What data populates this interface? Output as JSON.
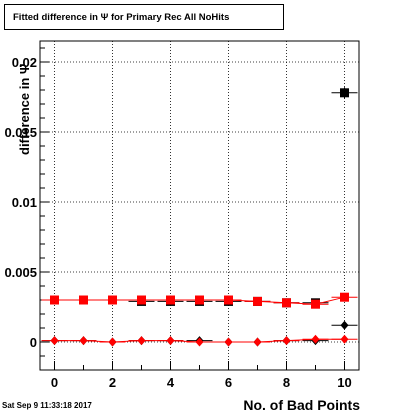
{
  "chart_data": {
    "type": "scatter",
    "title": "Fitted difference in  Ψ  for Primary Rec All NoHits",
    "xlabel": "No. of Bad Points",
    "ylabel": "difference in Ψ",
    "xlim": [
      -0.5,
      10.5
    ],
    "ylim": [
      -0.002,
      0.0215
    ],
    "grid": true,
    "x_ticks": [
      "0",
      "2",
      "4",
      "6",
      "8",
      "10"
    ],
    "y_ticks": [
      "0",
      "0.005",
      "0.01",
      "0.015",
      "0.02"
    ],
    "series": [
      {
        "marker": "square",
        "color": "#000000",
        "fit": false,
        "x": [
          0,
          1,
          2,
          3,
          4,
          5,
          6,
          7,
          8,
          9,
          10
        ],
        "y": [
          0.003,
          0.003,
          0.003,
          0.0029,
          0.0029,
          0.0029,
          0.0029,
          0.0029,
          0.0028,
          0.0028,
          0.0178
        ],
        "yerr": [
          0.0001,
          0.0001,
          0.0001,
          0.0001,
          0.0001,
          0.0001,
          0.0001,
          0.0001,
          0.0001,
          0.0001,
          0.0004
        ]
      },
      {
        "marker": "square",
        "color": "#ff0000",
        "fit": true,
        "x": [
          0,
          1,
          2,
          3,
          4,
          5,
          6,
          7,
          8,
          9,
          10
        ],
        "y": [
          0.003,
          0.003,
          0.003,
          0.003,
          0.003,
          0.003,
          0.003,
          0.0029,
          0.0028,
          0.0027,
          0.0032
        ],
        "yerr": [
          0.0001,
          0.0001,
          0.0001,
          0.0001,
          0.0001,
          0.0001,
          0.0001,
          0.0001,
          0.0001,
          0.0001,
          0.0001
        ]
      },
      {
        "marker": "diamond",
        "color": "#000000",
        "fit": false,
        "x": [
          0,
          1,
          2,
          3,
          4,
          5,
          6,
          7,
          8,
          9,
          10
        ],
        "y": [
          0.0001,
          0.0001,
          0.0,
          0.0001,
          0.0001,
          0.0001,
          0.0,
          0.0,
          0.0001,
          0.0001,
          0.0012
        ],
        "yerr": [
          5e-05,
          5e-05,
          5e-05,
          5e-05,
          5e-05,
          5e-05,
          5e-05,
          5e-05,
          5e-05,
          5e-05,
          0.0001
        ]
      },
      {
        "marker": "diamond",
        "color": "#ff0000",
        "fit": true,
        "x": [
          0,
          1,
          2,
          3,
          4,
          5,
          6,
          7,
          8,
          9,
          10
        ],
        "y": [
          0.0001,
          0.0001,
          0.0,
          0.0001,
          0.0001,
          0.0,
          0.0,
          0.0,
          0.0001,
          0.0002,
          0.0002
        ],
        "yerr": [
          5e-05,
          5e-05,
          5e-05,
          5e-05,
          5e-05,
          5e-05,
          5e-05,
          5e-05,
          5e-05,
          5e-05,
          5e-05
        ]
      }
    ]
  },
  "timestamp": "Sat Sep  9 11:33:18 2017"
}
